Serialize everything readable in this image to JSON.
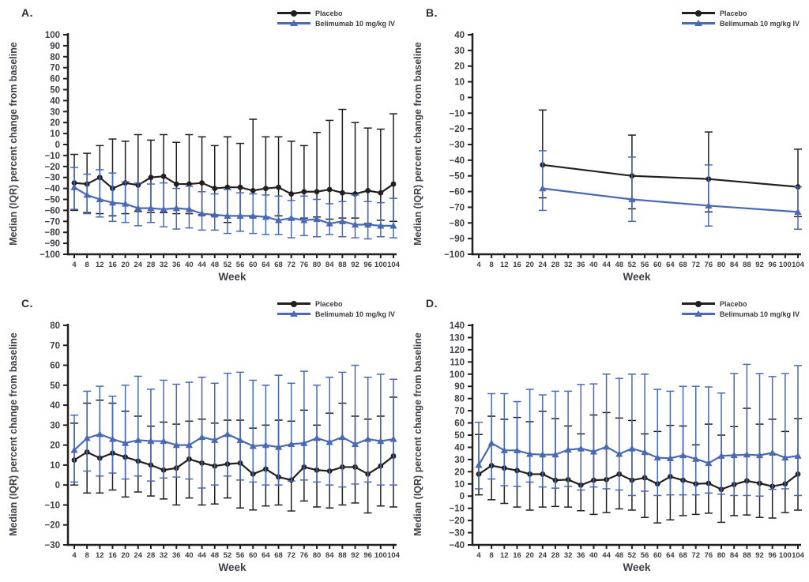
{
  "colors": {
    "placebo": "#231f20",
    "belimumab": "#4a69b4",
    "axis": "#231f20",
    "text": "#3f4147"
  },
  "legend": {
    "placebo": "Placebo",
    "belimumab": "Belimumab 10 mg/kg IV"
  },
  "chart_data": [
    {
      "panel": "A.",
      "type": "line",
      "xlabel": "Week",
      "ylabel": "Median (IQR) percent change from baseline",
      "ylim": [
        -100,
        100
      ],
      "ytick_step": 10,
      "x_ticks": [
        4,
        8,
        12,
        16,
        20,
        24,
        28,
        32,
        36,
        40,
        44,
        48,
        52,
        56,
        60,
        64,
        68,
        72,
        76,
        80,
        84,
        88,
        92,
        96,
        100,
        104
      ],
      "legend_position": "top-right",
      "grid": false,
      "series": [
        {
          "name": "Placebo",
          "marker": "circle",
          "color_key": "placebo",
          "x": [
            4,
            8,
            12,
            16,
            20,
            24,
            28,
            32,
            36,
            40,
            44,
            48,
            52,
            56,
            60,
            64,
            68,
            72,
            76,
            80,
            84,
            88,
            92,
            96,
            100,
            104
          ],
          "y": [
            -35,
            -36,
            -30,
            -40,
            -35,
            -37,
            -30,
            -29,
            -36,
            -36,
            -35,
            -40,
            -39,
            -39,
            -42,
            -40,
            -39,
            -45,
            -43,
            -43,
            -41,
            -44,
            -45,
            -42,
            -44,
            -36
          ],
          "upper": [
            -9,
            -8,
            -1,
            5,
            3,
            9,
            4,
            9,
            2,
            9,
            7,
            -1,
            7,
            1,
            23,
            7,
            7,
            3,
            -1,
            11,
            22,
            32,
            20,
            15,
            14,
            28
          ],
          "lower": [
            -60,
            -62,
            -63,
            -65,
            -63,
            -61,
            -62,
            -62,
            -63,
            -63,
            -64,
            -65,
            -71,
            -65,
            -66,
            -66,
            -65,
            -68,
            -67,
            -66,
            -68,
            -67,
            -67,
            -72,
            -69,
            -70
          ]
        },
        {
          "name": "Belimumab 10 mg/kg IV",
          "marker": "triangle",
          "color_key": "belimumab",
          "x": [
            4,
            8,
            12,
            16,
            20,
            24,
            28,
            32,
            36,
            40,
            44,
            48,
            52,
            56,
            60,
            64,
            68,
            72,
            76,
            80,
            84,
            88,
            92,
            96,
            100,
            104
          ],
          "y": [
            -39,
            -46,
            -50,
            -53,
            -54,
            -58,
            -58,
            -59,
            -58,
            -59,
            -63,
            -64,
            -65,
            -65,
            -65,
            -66,
            -69,
            -67,
            -69,
            -68,
            -72,
            -70,
            -73,
            -73,
            -74,
            -74
          ],
          "upper": [
            -21,
            -27,
            -23,
            -26,
            -34,
            -35,
            -36,
            -35,
            -40,
            -38,
            -43,
            -45,
            -41,
            -44,
            -45,
            -46,
            -47,
            -51,
            -47,
            -50,
            -54,
            -52,
            -46,
            -52,
            -53,
            -49
          ],
          "lower": [
            -59,
            -63,
            -66,
            -70,
            -71,
            -74,
            -71,
            -75,
            -77,
            -76,
            -78,
            -78,
            -81,
            -79,
            -81,
            -82,
            -82,
            -85,
            -83,
            -84,
            -82,
            -84,
            -85,
            -86,
            -84,
            -85
          ]
        }
      ]
    },
    {
      "panel": "B.",
      "type": "line",
      "xlabel": "Week",
      "ylabel": "Median (IQR) percent change from baseline",
      "ylim": [
        -100,
        40
      ],
      "ytick_step": 10,
      "x_ticks": [
        4,
        8,
        12,
        16,
        20,
        24,
        28,
        32,
        36,
        40,
        44,
        48,
        52,
        56,
        60,
        64,
        68,
        72,
        76,
        80,
        84,
        88,
        92,
        96,
        100,
        104
      ],
      "legend_position": "top-right",
      "grid": false,
      "series": [
        {
          "name": "Placebo",
          "marker": "circle",
          "color_key": "placebo",
          "x": [
            24,
            52,
            76,
            104
          ],
          "y": [
            -43,
            -50,
            -52,
            -57
          ],
          "upper": [
            -8,
            -24,
            -22,
            -33
          ],
          "lower": [
            -64,
            -71,
            -73,
            -76
          ]
        },
        {
          "name": "Belimumab 10 mg/kg IV",
          "marker": "triangle",
          "color_key": "belimumab",
          "x": [
            24,
            52,
            76,
            104
          ],
          "y": [
            -58,
            -65,
            -69,
            -73
          ],
          "upper": [
            -34,
            -38,
            -43,
            -57
          ],
          "lower": [
            -72,
            -79,
            -82,
            -84
          ]
        }
      ]
    },
    {
      "panel": "C.",
      "type": "line",
      "xlabel": "Week",
      "ylabel": "Median (IQR) percent change from baseline",
      "ylim": [
        -30,
        80
      ],
      "ytick_step": 10,
      "x_ticks": [
        4,
        8,
        12,
        16,
        20,
        24,
        28,
        32,
        36,
        40,
        44,
        48,
        52,
        56,
        60,
        64,
        68,
        72,
        76,
        80,
        84,
        88,
        92,
        96,
        100,
        104
      ],
      "legend_position": "top-right",
      "grid": false,
      "series": [
        {
          "name": "Placebo",
          "marker": "circle",
          "color_key": "placebo",
          "x": [
            4,
            8,
            12,
            16,
            20,
            24,
            28,
            32,
            36,
            40,
            44,
            48,
            52,
            56,
            60,
            64,
            68,
            72,
            76,
            80,
            84,
            88,
            92,
            96,
            100,
            104
          ],
          "y": [
            12.5,
            16.5,
            13.5,
            16,
            14,
            12,
            10,
            7.5,
            8.5,
            13,
            11,
            9.5,
            10.5,
            11,
            5.5,
            8,
            4,
            2.5,
            9,
            7.5,
            7,
            9,
            9,
            5.5,
            9.5,
            14.5
          ],
          "upper": [
            31,
            41,
            42.5,
            41,
            37,
            34.5,
            29.5,
            31.5,
            30.5,
            32,
            33,
            31,
            32.5,
            32.5,
            28.5,
            30,
            32.5,
            32,
            37.5,
            30,
            36,
            41,
            34.5,
            33,
            34.5,
            44
          ],
          "lower": [
            0,
            -4,
            -4,
            -2.5,
            -6,
            -3.5,
            -5.5,
            -7,
            -10,
            -6.5,
            -10,
            -9.5,
            -6.5,
            -11.5,
            -12.5,
            -10.5,
            -10,
            -13,
            -8,
            -11,
            -11.5,
            -10,
            -9,
            -14,
            -10.5,
            -11
          ]
        },
        {
          "name": "Belimumab 10 mg/kg IV",
          "marker": "triangle",
          "color_key": "belimumab",
          "x": [
            4,
            8,
            12,
            16,
            20,
            24,
            28,
            32,
            36,
            40,
            44,
            48,
            52,
            56,
            60,
            64,
            68,
            72,
            76,
            80,
            84,
            88,
            92,
            96,
            100,
            104
          ],
          "y": [
            17.5,
            23.5,
            25.5,
            23,
            21,
            22.5,
            22,
            22,
            20,
            20,
            24,
            22.5,
            25.5,
            22.5,
            19.5,
            20,
            19,
            20.5,
            21,
            23.5,
            21.5,
            24,
            20.5,
            23,
            22,
            23
          ],
          "upper": [
            35,
            47,
            49.5,
            44.5,
            50,
            54.5,
            48,
            52.5,
            50.5,
            51.5,
            54,
            51,
            56,
            56.5,
            52.5,
            50,
            55,
            51,
            57,
            50,
            54,
            56.5,
            60,
            54,
            55.5,
            53
          ],
          "lower": [
            1.5,
            7,
            4.5,
            6,
            3,
            4.5,
            2,
            3.5,
            4,
            3,
            -1.5,
            0,
            4.5,
            2.5,
            1.5,
            0,
            0,
            2,
            2.5,
            1.5,
            0,
            -1,
            0.5,
            1.5,
            0,
            0
          ]
        }
      ]
    },
    {
      "panel": "D.",
      "type": "line",
      "xlabel": "Week",
      "ylabel": "Median (IQR) percent change from baseline",
      "ylim": [
        -40,
        140
      ],
      "ytick_step": 10,
      "x_ticks": [
        4,
        8,
        12,
        16,
        20,
        24,
        28,
        32,
        36,
        40,
        44,
        48,
        52,
        56,
        60,
        64,
        68,
        72,
        76,
        80,
        84,
        88,
        92,
        96,
        100,
        104
      ],
      "legend_position": "top-right",
      "grid": false,
      "series": [
        {
          "name": "Placebo",
          "marker": "circle",
          "color_key": "placebo",
          "x": [
            4,
            8,
            12,
            16,
            20,
            24,
            28,
            32,
            36,
            40,
            44,
            48,
            52,
            56,
            60,
            64,
            68,
            72,
            76,
            80,
            84,
            88,
            92,
            96,
            100,
            104
          ],
          "y": [
            18,
            25,
            23,
            21,
            18,
            18,
            13,
            13.5,
            9,
            13,
            13.5,
            18,
            13,
            15,
            10,
            16,
            13,
            10,
            10.5,
            5.5,
            9.5,
            12.5,
            10.5,
            8,
            10,
            18
          ],
          "upper": [
            50.5,
            65.5,
            63,
            64.5,
            61,
            69.5,
            63.5,
            57.5,
            51,
            66.5,
            68.5,
            64,
            62,
            51,
            53,
            58,
            57.5,
            42,
            59,
            50,
            57,
            72,
            59,
            63,
            53,
            63.5
          ],
          "lower": [
            1,
            -3,
            -6,
            -9,
            -11.5,
            -9,
            -8.5,
            -9,
            -12,
            -15,
            -13.5,
            -10.5,
            -11.5,
            -17.5,
            -22,
            -19.5,
            -16,
            -15,
            -14,
            -21.5,
            -16,
            -15.5,
            -17.5,
            -18,
            -13.5,
            -11.5
          ]
        },
        {
          "name": "Belimumab 10 mg/kg IV",
          "marker": "triangle",
          "color_key": "belimumab",
          "x": [
            4,
            8,
            12,
            16,
            20,
            24,
            28,
            32,
            36,
            40,
            44,
            48,
            52,
            56,
            60,
            64,
            68,
            72,
            76,
            80,
            84,
            88,
            92,
            96,
            100,
            104
          ],
          "y": [
            25.5,
            43.5,
            37.5,
            37.5,
            34.5,
            34,
            34,
            38,
            39,
            36.5,
            40.5,
            34.5,
            39,
            36,
            31.5,
            31,
            33.5,
            30.5,
            27,
            33,
            33.5,
            34,
            33.5,
            35.5,
            31.5,
            33
          ],
          "upper": [
            60.5,
            84,
            84,
            77.5,
            87.5,
            83,
            86,
            86,
            91.5,
            92,
            100,
            96.5,
            100,
            100,
            87.5,
            86,
            90,
            90,
            89.5,
            84.5,
            100.5,
            108,
            100.5,
            98,
            100.5,
            107
          ],
          "lower": [
            6,
            14,
            8.5,
            8,
            11.5,
            7.5,
            6.5,
            8,
            5,
            7.5,
            6,
            5,
            0.5,
            4,
            0.5,
            1,
            1,
            1,
            2.5,
            1.5,
            0.5,
            0.5,
            0,
            5.5,
            6,
            0.5
          ]
        }
      ]
    }
  ]
}
